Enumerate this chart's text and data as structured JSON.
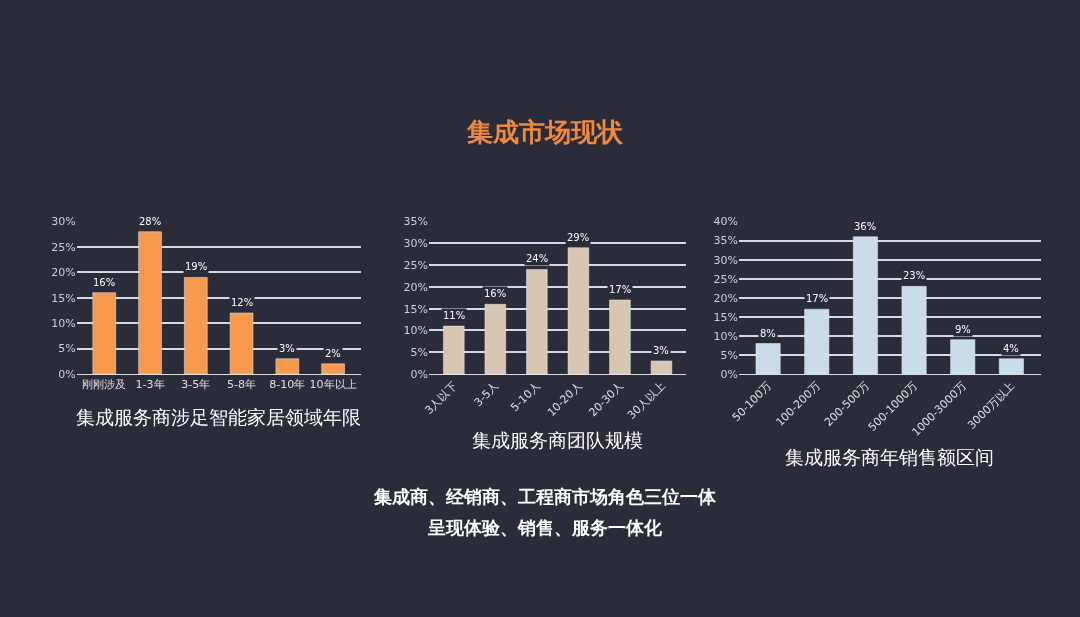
{
  "chart_data": [
    {
      "type": "other",
      "title": "集成市场现状"
    },
    {
      "type": "bar",
      "xlabel": "集成服务商涉足智能家居领域年限",
      "categories": [
        "刚刚涉及",
        "1-3年",
        "3-5年",
        "5-8年",
        "8-10年",
        "10年以上"
      ],
      "values": [
        16,
        28,
        19,
        12,
        3,
        2
      ],
      "value_labels": [
        "16%",
        "28%",
        "19%",
        "12%",
        "3%",
        "2%"
      ],
      "color": "#f79a4e",
      "ylim": [
        0,
        30
      ],
      "yticks": [
        {
          "value": 0,
          "label": "0%"
        },
        {
          "value": 5,
          "label": "5%"
        },
        {
          "value": 10,
          "label": "10%"
        },
        {
          "value": 15,
          "label": "15%"
        },
        {
          "value": 20,
          "label": "20%"
        },
        {
          "value": 25,
          "label": "25%"
        },
        {
          "value": 30,
          "label": "30%"
        }
      ],
      "grid": "y"
    },
    {
      "type": "bar",
      "xlabel": "集成服务商团队规模",
      "categories": [
        "3人以下",
        "3-5人",
        "5-10人",
        "10-20人",
        "20-30人",
        "30人以上"
      ],
      "values": [
        11,
        16,
        24,
        29,
        17,
        3
      ],
      "value_labels": [
        "11%",
        "16%",
        "24%",
        "29%",
        "17%",
        "3%"
      ],
      "color": "#d9c6b2",
      "ylim": [
        0,
        35
      ],
      "yticks": [
        {
          "value": 0,
          "label": "0%"
        },
        {
          "value": 5,
          "label": "5%"
        },
        {
          "value": 10,
          "label": "10%"
        },
        {
          "value": 15,
          "label": "15%"
        },
        {
          "value": 20,
          "label": "20%"
        },
        {
          "value": 25,
          "label": "25%"
        },
        {
          "value": 30,
          "label": "30%"
        },
        {
          "value": 35,
          "label": "35%"
        }
      ],
      "grid": "y"
    },
    {
      "type": "bar",
      "xlabel": "集成服务商年销售额区间",
      "categories": [
        "50-100万",
        "100-200万",
        "200-500万",
        "500-1000万",
        "1000-3000万",
        "3000万以上"
      ],
      "values": [
        8,
        17,
        36,
        23,
        9,
        4
      ],
      "value_labels": [
        "8%",
        "17%",
        "36%",
        "23%",
        "9%",
        "4%"
      ],
      "color": "#c9dcea",
      "ylim": [
        0,
        40
      ],
      "yticks": [
        {
          "value": 0,
          "label": "0%"
        },
        {
          "value": 5,
          "label": "5%"
        },
        {
          "value": 10,
          "label": "10%"
        },
        {
          "value": 15,
          "label": "15%"
        },
        {
          "value": 20,
          "label": "20%"
        },
        {
          "value": 25,
          "label": "25%"
        },
        {
          "value": 30,
          "label": "30%"
        },
        {
          "value": 35,
          "label": "35%"
        },
        {
          "value": 40,
          "label": "40%"
        }
      ],
      "grid": "y"
    },
    {
      "type": "other",
      "annotations": [
        "集成商、经销商、工程商市场角色三位一体",
        "呈现体验、销售、服务一体化"
      ]
    }
  ]
}
